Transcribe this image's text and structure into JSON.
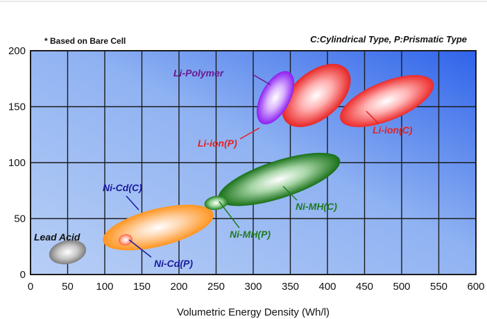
{
  "chart_data": {
    "type": "scatter",
    "title": "",
    "xlabel": "Volumetric Energy Density (Wh/l)",
    "ylabel": "",
    "xlim": [
      0,
      600
    ],
    "ylim": [
      0,
      200
    ],
    "xticks": [
      "0",
      "50",
      "100",
      "150",
      "200",
      "250",
      "300",
      "350",
      "400",
      "450",
      "500",
      "550",
      "600"
    ],
    "yticks": [
      "0",
      "50",
      "100",
      "150",
      "200"
    ],
    "grid": true,
    "note_left": "* Based on Bare Cell",
    "note_right": "C:Cylindrical Type, P:Prismatic Type",
    "series": [
      {
        "name": "Lead Acid",
        "color": "#8c8c8c",
        "x": 50,
        "y": 20
      },
      {
        "name": "Ni-Cd(C)",
        "color": "#ff9a2e",
        "x": 172,
        "y": 42
      },
      {
        "name": "Ni-Cd(P)",
        "color": "#ff7f50",
        "x": 128,
        "y": 31
      },
      {
        "name": "Ni-MH(C)",
        "color": "#1f7a1f",
        "x": 335,
        "y": 85
      },
      {
        "name": "Ni-MH(P)",
        "color": "#2e8b2e",
        "x": 250,
        "y": 64
      },
      {
        "name": "Li-Polymer",
        "color": "#9b30ff",
        "x": 330,
        "y": 158
      },
      {
        "name": "Li-Ion(P)",
        "color": "#e53935",
        "x": 385,
        "y": 160
      },
      {
        "name": "Li-Ion(C)",
        "color": "#ef3b3b",
        "x": 480,
        "y": 155
      }
    ]
  }
}
